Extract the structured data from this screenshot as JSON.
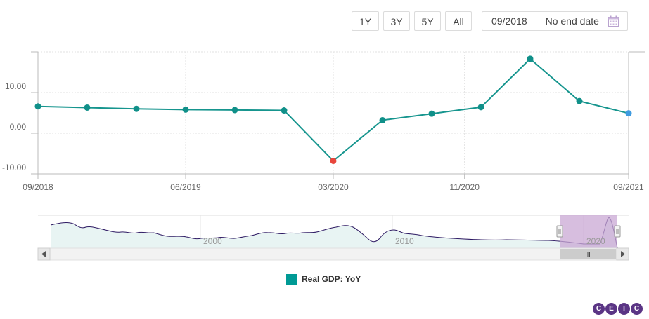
{
  "range_buttons": [
    "1Y",
    "3Y",
    "5Y",
    "All"
  ],
  "date_range": {
    "start": "09/2018",
    "separator": "—",
    "end": "No end date"
  },
  "colors": {
    "line": "#16958e",
    "marker": "#109089",
    "min_marker": "#e8463c",
    "last_marker": "#3f9be0",
    "navigator_fill": "#e8f4f3",
    "navigator_line": "#2e1a63",
    "selection": "#c9a8d4"
  },
  "icons": {
    "date_picker": "calendar-icon"
  },
  "chart_data": {
    "type": "line",
    "series": [
      {
        "name": "Real GDP: YoY",
        "x": [
          "09/2018",
          "12/2018",
          "03/2019",
          "06/2019",
          "09/2019",
          "12/2019",
          "03/2020",
          "06/2020",
          "09/2020",
          "12/2020",
          "03/2021",
          "06/2021",
          "09/2021"
        ],
        "values": [
          6.6,
          6.3,
          6.0,
          5.8,
          5.7,
          5.6,
          -6.8,
          3.2,
          4.8,
          6.4,
          18.3,
          7.9,
          4.9
        ]
      }
    ],
    "y_ticks": [
      "-10.00",
      "0.00",
      "10.00"
    ],
    "x_tick_labels": [
      "09/2018",
      "06/2019",
      "03/2020",
      "11/2020",
      "09/2021"
    ],
    "ylim": [
      -10,
      20
    ],
    "navigator": {
      "tick_labels": [
        "2000",
        "2010",
        "2020"
      ],
      "scrollbar_grip": "III"
    }
  },
  "legend": {
    "label": "Real GDP: YoY"
  },
  "logo": {
    "letters": [
      "C",
      "E",
      "I",
      "C"
    ]
  }
}
